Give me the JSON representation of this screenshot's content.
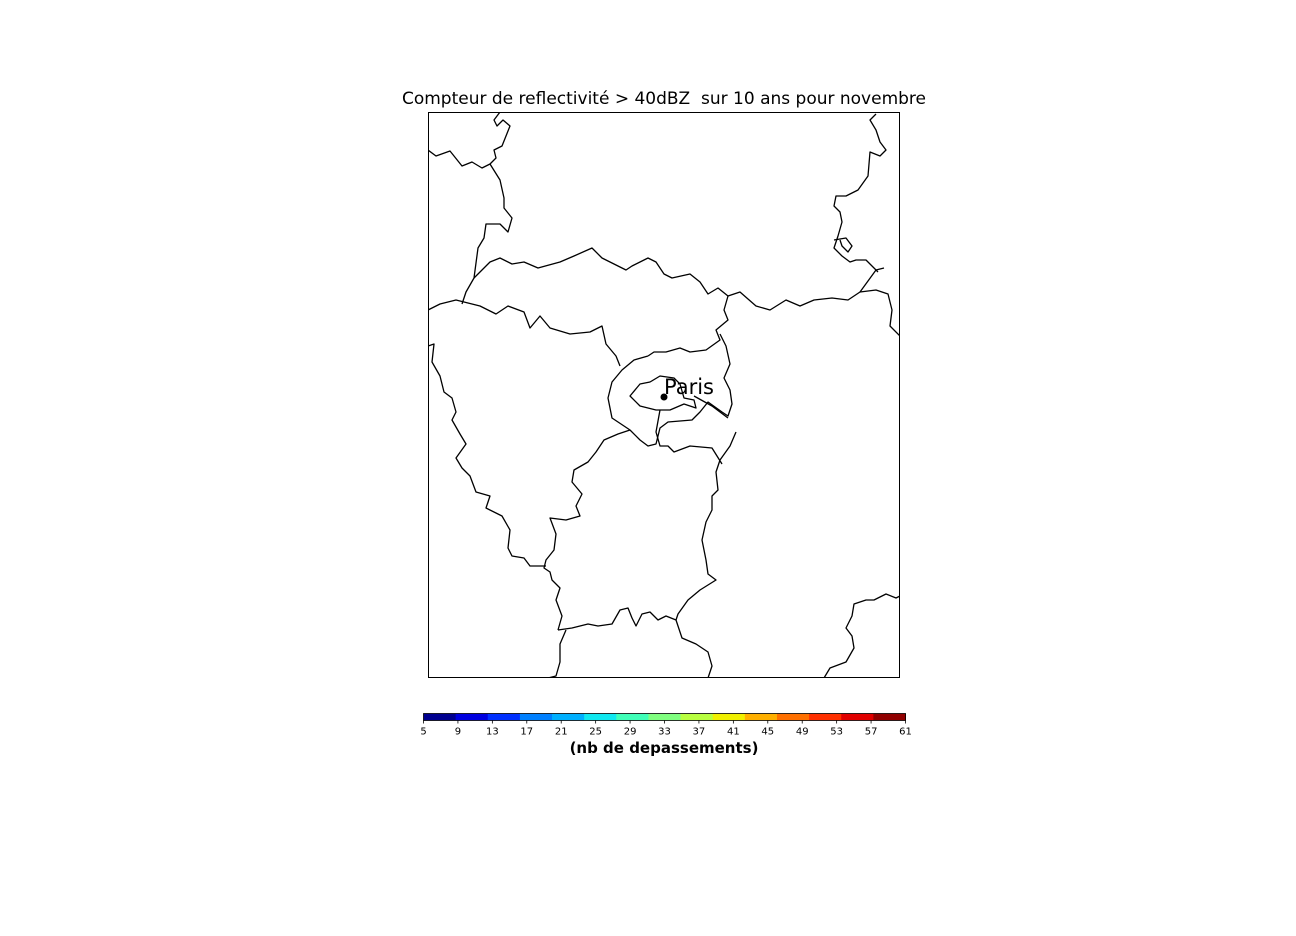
{
  "title": "Compteur de reflectivité > 40dBZ  sur 10 ans pour novembre",
  "city": {
    "name": "Paris"
  },
  "colorbar": {
    "label": "(nb de depassements)",
    "ticks": [
      "5",
      "9",
      "13",
      "17",
      "21",
      "25",
      "29",
      "33",
      "37",
      "41",
      "45",
      "49",
      "53",
      "57",
      "61"
    ],
    "colors": [
      "#00008f",
      "#0000e0",
      "#0030ff",
      "#0080ff",
      "#00b0ff",
      "#10e8f0",
      "#40ffb8",
      "#80ff80",
      "#b8ff40",
      "#f0f000",
      "#ffb000",
      "#ff7000",
      "#ff3000",
      "#e00000",
      "#900000"
    ]
  }
}
